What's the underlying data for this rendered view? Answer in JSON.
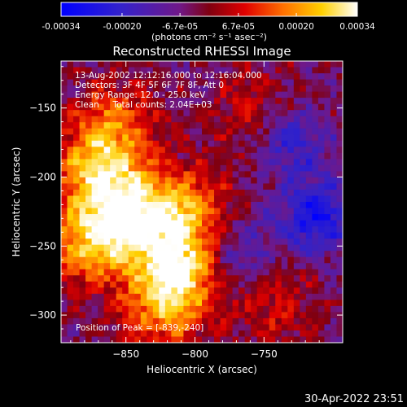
{
  "chart_data": {
    "type": "heatmap",
    "title": "Reconstructed RHESSI Image",
    "xlabel": "Heliocentric X (arcsec)",
    "ylabel": "Heliocentric Y (arcsec)",
    "xlim": [
      -897,
      -693
    ],
    "ylim": [
      -320,
      -116
    ],
    "x_ticks": [
      -850,
      -800,
      -750
    ],
    "y_ticks": [
      -300,
      -250,
      -200,
      -150
    ],
    "colorbar": {
      "range": [
        -0.00034,
        0.00034
      ],
      "ticks": [
        {
          "value": -0.00034,
          "label": "-0.00034"
        },
        {
          "value": -0.0002,
          "label": "-0.00020"
        },
        {
          "value": -6.7e-05,
          "label": "-6.7e-05"
        },
        {
          "value": 6.7e-05,
          "label": "6.7e-05"
        },
        {
          "value": 0.0002,
          "label": "0.00020"
        },
        {
          "value": 0.00034,
          "label": "0.00034"
        }
      ],
      "unit_label": "(photons cm⁻² s⁻¹ asec⁻²)"
    },
    "annotations": [
      "13-Aug-2002 12:12:16.000 to 12:16:04.000",
      "Detectors: 3F 4F 5F 6F 7F 8F, Att 0",
      "Energy Range: 12.0 - 25.0 keV",
      "Clean     Total counts: 2.04E+03"
    ],
    "peak_label": "Position of Peak = [-839,-240]",
    "peak": {
      "x": -839,
      "y": -240
    },
    "sources": [
      {
        "x": -848,
        "y": -230,
        "amp": 0.00034
      },
      {
        "x": -812,
        "y": -268,
        "amp": 0.00032
      },
      {
        "x": -870,
        "y": -195,
        "amp": 0.00027
      },
      {
        "x": -805,
        "y": -225,
        "amp": 0.00024
      },
      {
        "x": -880,
        "y": -250,
        "amp": 0.00022
      },
      {
        "x": -858,
        "y": -160,
        "amp": 0.00018
      },
      {
        "x": -825,
        "y": -300,
        "amp": 0.00018
      },
      {
        "x": -760,
        "y": -150,
        "amp": 0.0001
      },
      {
        "x": -742,
        "y": -292,
        "amp": 0.00011
      }
    ],
    "negative_regions": [
      {
        "x": -712,
        "y": -230,
        "amp": -0.00024
      },
      {
        "x": -730,
        "y": -175,
        "amp": -0.00016
      },
      {
        "x": -770,
        "y": -255,
        "amp": -0.00014
      }
    ],
    "colors": {
      "colormap": [
        "#0000ff",
        "#4020a0",
        "#602080",
        "#800000",
        "#ff0000",
        "#ff8800",
        "#ffff00",
        "#ffffff"
      ]
    }
  },
  "footer": {
    "timestamp": "30-Apr-2022 23:51"
  }
}
